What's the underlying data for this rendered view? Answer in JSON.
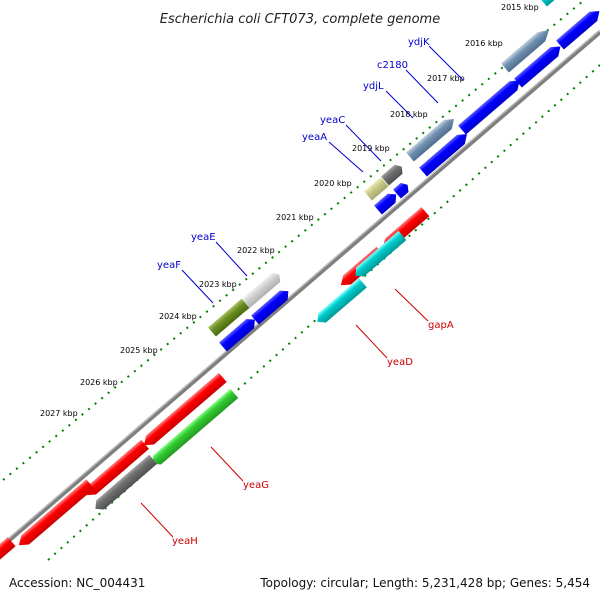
{
  "title": "Escherichia coli CFT073, complete genome",
  "footer": {
    "accession": "Accession: NC_004431",
    "topology": "Topology: circular; Length: 5,231,428 bp; Genes: 5,454"
  },
  "colors": {
    "backbone": "#7f7f7f",
    "tick": "#008000",
    "forward_label": "#0000cc",
    "reverse_label": "#cc0000"
  },
  "scale_labels": [
    "2015 kbp",
    "2016 kbp",
    "2017 kbp",
    "2018 kbp",
    "2019 kbp",
    "2020 kbp",
    "2021 kbp",
    "2022 kbp",
    "2023 kbp",
    "2024 kbp",
    "2025 kbp",
    "2026 kbp",
    "2027 kbp"
  ],
  "genes": [
    {
      "name": "ydjK",
      "strand": "forward",
      "color": "gray-blue"
    },
    {
      "name": "c2180",
      "strand": "forward",
      "color": "gray-blue"
    },
    {
      "name": "ydjL",
      "strand": "forward",
      "color": "blue"
    },
    {
      "name": "yeaC",
      "strand": "forward",
      "color": "gray"
    },
    {
      "name": "yeaA",
      "strand": "forward",
      "color": "khaki"
    },
    {
      "name": "yeaE",
      "strand": "forward",
      "color": "light-gray"
    },
    {
      "name": "yeaF",
      "strand": "forward",
      "color": "olive"
    },
    {
      "name": "gapA",
      "strand": "reverse",
      "color": "cyan"
    },
    {
      "name": "yeaD",
      "strand": "reverse",
      "color": "cyan"
    },
    {
      "name": "yeaG",
      "strand": "reverse",
      "color": "green"
    },
    {
      "name": "yeaH",
      "strand": "reverse",
      "color": "gray"
    }
  ]
}
